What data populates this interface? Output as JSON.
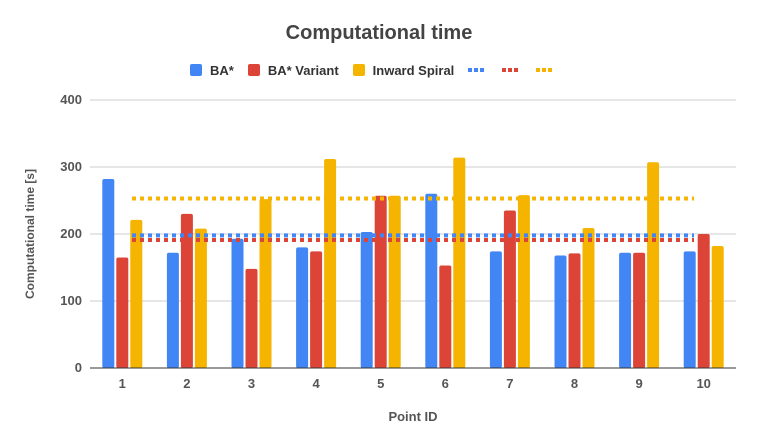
{
  "chart_data": {
    "type": "bar",
    "title": "Computational time",
    "xlabel": "Point ID",
    "ylabel": "Computational time [s]",
    "ylim": [
      0,
      400
    ],
    "yticks": [
      0,
      100,
      200,
      300,
      400
    ],
    "grid": true,
    "legend_position": "top",
    "categories": [
      "1",
      "2",
      "3",
      "4",
      "5",
      "6",
      "7",
      "8",
      "9",
      "10"
    ],
    "series": [
      {
        "name": "BA*",
        "color": "#4285f4",
        "values": [
          282,
          172,
          193,
          180,
          203,
          260,
          174,
          168,
          172,
          174
        ]
      },
      {
        "name": "BA* Variant",
        "color": "#db4437",
        "values": [
          165,
          230,
          148,
          174,
          257,
          153,
          235,
          171,
          172,
          200
        ]
      },
      {
        "name": "Inward Spiral",
        "color": "#f4b400",
        "values": [
          221,
          208,
          252,
          312,
          257,
          314,
          258,
          209,
          307,
          182
        ]
      }
    ],
    "average_lines": [
      {
        "color": "#4285f4",
        "value": 198
      },
      {
        "color": "#db4437",
        "value": 191
      },
      {
        "color": "#f4b400",
        "value": 253
      }
    ]
  }
}
